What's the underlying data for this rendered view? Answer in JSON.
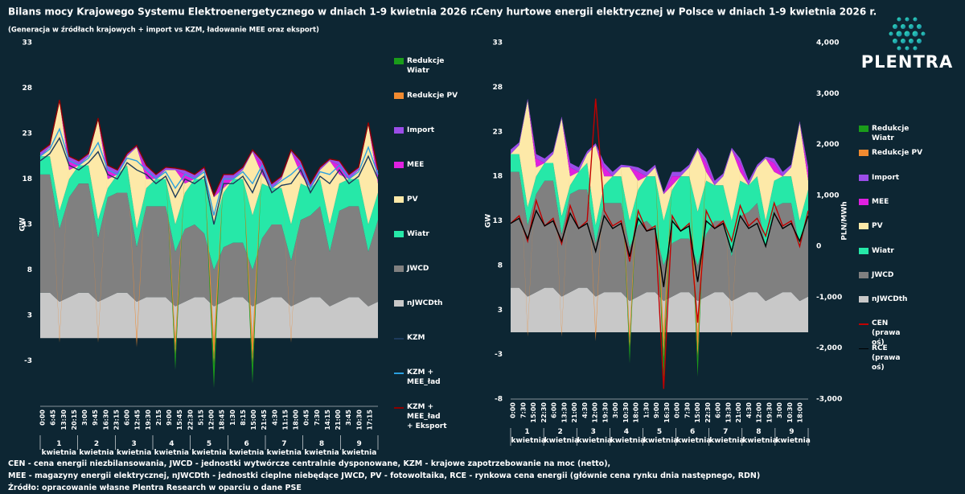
{
  "chart_data": [
    {
      "type": "stacked-area",
      "title": "Bilans mocy Krajowego Systemu Elektroenergetycznego w dniach 1-9 kwietnia 2026 r.",
      "subtitle": "(Generacja w źródłach krajowych + import vs KZM, ładowanie MEE oraz eksport)",
      "ylabel": "GW",
      "ylim": [
        -7.5,
        32.5
      ],
      "yticks": [
        {
          "value": 32.5,
          "label": "33"
        },
        {
          "value": 27.5,
          "label": "28"
        },
        {
          "value": 22.5,
          "label": "23"
        },
        {
          "value": 17.5,
          "label": "18"
        },
        {
          "value": 12.5,
          "label": "13"
        },
        {
          "value": 7.5,
          "label": "8"
        },
        {
          "value": 2.5,
          "label": "3"
        },
        {
          "value": -2.5,
          "label": "-3"
        }
      ],
      "x_tick_labels": [
        "0:00",
        "6:45",
        "13:30",
        "20:15",
        "3:00",
        "9:45",
        "16:30",
        "23:15",
        "6:00",
        "12:45",
        "19:30",
        "2:15",
        "9:00",
        "15:45",
        "22:30",
        "5:15",
        "12:00",
        "18:45",
        "1:30",
        "8:15",
        "15:00",
        "21:45",
        "4:30",
        "11:15",
        "18:00",
        "0:45",
        "7:30",
        "14:15",
        "21:00",
        "3:45",
        "10:30",
        "17:15"
      ],
      "day_labels": [
        "1 kwietnia",
        "2 kwietnia",
        "3 kwietnia",
        "4 kwietnia",
        "5 kwietnia",
        "6 kwietnia",
        "7 kwietnia",
        "8 kwietnia",
        "9 kwietnia"
      ],
      "series": [
        {
          "name": "Redukcje Wiatr",
          "kind": "area",
          "color": "#1a9c1a",
          "values": [
            0,
            0,
            0,
            0,
            0,
            0,
            0,
            0,
            0,
            0,
            0,
            0,
            0,
            0,
            -1.5,
            0,
            0,
            0,
            -2.5,
            0,
            0,
            0,
            -2,
            0,
            0,
            0,
            0,
            0,
            0,
            0,
            0,
            0,
            0,
            0,
            0,
            0
          ]
        },
        {
          "name": "Redukcje PV",
          "kind": "area",
          "color": "#f08a30",
          "values": [
            0,
            0,
            -0.5,
            0,
            0,
            0,
            -0.5,
            0,
            0,
            0,
            -1,
            0,
            0,
            0,
            -2,
            0,
            0,
            0,
            -3,
            0,
            0,
            0,
            -3,
            0,
            0,
            0,
            -0.5,
            0,
            0,
            0,
            0,
            0,
            0,
            0,
            0,
            0
          ]
        },
        {
          "name": "Import",
          "kind": "area",
          "color": "#9b4de8",
          "values": [
            0.5,
            0.3,
            0.2,
            0.5,
            0.5,
            0.3,
            0.2,
            0.5,
            0.5,
            0.3,
            0.2,
            0.5,
            0.5,
            0.3,
            0.2,
            0.5,
            0.5,
            0.3,
            0.2,
            0.5,
            0.5,
            0.3,
            0.2,
            0.5,
            0.5,
            0.3,
            0.2,
            0.5,
            0.5,
            0.3,
            0.2,
            0.5,
            0.5,
            0.3,
            0.2,
            0.5
          ]
        },
        {
          "name": "MEE",
          "kind": "area",
          "color": "#e020e0",
          "values": [
            0,
            0,
            0,
            1,
            0,
            0,
            0,
            1,
            0,
            0,
            0,
            1,
            0,
            0,
            0,
            1,
            0,
            0,
            0,
            1,
            0,
            0,
            0,
            1,
            0,
            0,
            0,
            1,
            0,
            0,
            0,
            1,
            0,
            0,
            0,
            1
          ]
        },
        {
          "name": "PV",
          "kind": "area",
          "color": "#fde9a8",
          "values": [
            0,
            1,
            12,
            1,
            0,
            1,
            11,
            1,
            0,
            1,
            9,
            1,
            0,
            1,
            6,
            1,
            0,
            1,
            3,
            0.5,
            0,
            1,
            7,
            1,
            0,
            1,
            8,
            1,
            0,
            1,
            7,
            1,
            0,
            1,
            11,
            1
          ]
        },
        {
          "name": "Wiatr",
          "kind": "area",
          "color": "#26e8a8",
          "values": [
            2,
            2,
            2,
            2,
            2,
            2,
            2,
            1,
            2,
            3,
            2,
            2,
            3,
            3,
            3,
            4,
            5,
            6,
            5,
            6,
            7,
            7,
            6,
            6,
            4,
            4,
            4,
            4,
            3,
            3,
            3,
            3,
            3,
            3,
            3,
            3
          ]
        },
        {
          "name": "JWCD",
          "kind": "area",
          "color": "#808080",
          "values": [
            13,
            13,
            8,
            11,
            12,
            12,
            7,
            11,
            11,
            11,
            6,
            10,
            10,
            10,
            6,
            8,
            8,
            7,
            4,
            6,
            6,
            6,
            4,
            7,
            8,
            8,
            5,
            9,
            9,
            10,
            6,
            10,
            10,
            10,
            6,
            9
          ]
        },
        {
          "name": "nJWCDth",
          "kind": "area",
          "color": "#c8c8c8",
          "values": [
            5,
            5,
            4,
            4.5,
            5,
            5,
            4,
            4.5,
            5,
            5,
            4,
            4.5,
            4.5,
            4.5,
            3.5,
            4,
            4.5,
            4.5,
            3.5,
            4,
            4.5,
            4.5,
            3.5,
            4,
            4.5,
            4.5,
            3.5,
            4,
            4.5,
            4.5,
            3.5,
            4,
            4.5,
            4.5,
            3.5,
            4
          ]
        },
        {
          "name": "KZM",
          "kind": "line",
          "color": "#1d3b5c",
          "values": [
            19.5,
            20.3,
            22,
            19,
            18.5,
            19.3,
            20.5,
            18,
            17.5,
            19.3,
            18.5,
            18,
            17,
            17.8,
            15.5,
            17.5,
            17,
            17.8,
            12.5,
            17,
            17,
            17.8,
            16,
            18.5,
            16,
            16.8,
            17,
            18.5,
            16,
            17.8,
            17,
            18.5,
            17,
            17.8,
            20,
            17.5
          ]
        },
        {
          "name": "KZM + MEE_ład",
          "kind": "line",
          "color": "#2aa0e0",
          "values": [
            20,
            20.8,
            23,
            19.5,
            19,
            19.8,
            21.5,
            18.5,
            18,
            19.8,
            19.5,
            18.5,
            17.5,
            18.3,
            16.5,
            18,
            17.5,
            18.3,
            13.5,
            17.5,
            17.5,
            18.3,
            17,
            19,
            16.5,
            17.3,
            18,
            19,
            16.5,
            18.3,
            18,
            19,
            17.5,
            18.3,
            21,
            18
          ]
        },
        {
          "name": "KZM + MEE_ład + Eksport",
          "kind": "line",
          "color": "#8b0000",
          "values": [
            20.5,
            21.3,
            26.2,
            20,
            19.5,
            20.3,
            24.2,
            19,
            18.5,
            20.3,
            21.2,
            19,
            18,
            18.8,
            18.7,
            18.5,
            18,
            18.8,
            15.7,
            18,
            18,
            18.8,
            20.7,
            19.5,
            17,
            17.8,
            20.7,
            19.5,
            17,
            18.8,
            19.7,
            19.5,
            18,
            18.8,
            23.7,
            18.5
          ]
        }
      ]
    },
    {
      "type": "stacked-area",
      "title": "Ceny hurtowe energii elektrycznej w Polsce w dniach 1-9 kwietnia 2026 r.",
      "ylabel": "GW",
      "y2label": "PLN/MWh",
      "ylim": [
        -7.5,
        32.5
      ],
      "yticks": [
        {
          "value": 32.5,
          "label": "33"
        },
        {
          "value": 27.5,
          "label": "28"
        },
        {
          "value": 22.5,
          "label": "23"
        },
        {
          "value": 17.5,
          "label": "18"
        },
        {
          "value": 12.5,
          "label": "13"
        },
        {
          "value": 7.5,
          "label": "8"
        },
        {
          "value": 2.5,
          "label": "3"
        },
        {
          "value": -2.5,
          "label": "-3"
        },
        {
          "value": -7.5,
          "label": "-8"
        }
      ],
      "y2lim": [
        -3000,
        4000
      ],
      "y2ticks": [
        {
          "value": 4000,
          "label": "4,000"
        },
        {
          "value": 3000,
          "label": "3,000"
        },
        {
          "value": 2000,
          "label": "2,000"
        },
        {
          "value": 1000,
          "label": "1,000"
        },
        0,
        {
          "value": -1000,
          "label": "-1,000"
        },
        {
          "value": -2000,
          "label": "-2,000"
        },
        {
          "value": -3000,
          "label": "-3,000"
        }
      ],
      "x_tick_labels": [
        "0:00",
        "7:30",
        "15:00",
        "22:30",
        "6:00",
        "13:30",
        "21:00",
        "4:30",
        "12:00",
        "19:30",
        "3:00",
        "10:30",
        "18:00",
        "1:30",
        "9:00",
        "16:30",
        "0:00",
        "7:30",
        "15:00",
        "22:30",
        "6:00",
        "13:30",
        "21:00",
        "4:30",
        "12:00",
        "19:30",
        "3:00",
        "10:30",
        "18:00"
      ],
      "day_labels": [
        "1 kwietnia",
        "2 kwietnia",
        "3 kwietnia",
        "4 kwietnia",
        "5 kwietnia",
        "6 kwietnia",
        "7 kwietnia",
        "8 kwietnia",
        "9 kwietnia"
      ],
      "series": [
        {
          "name": "Redukcje Wiatr",
          "kind": "area",
          "color": "#1a9c1a",
          "values": [
            0,
            0,
            0,
            0,
            0,
            0,
            0,
            0,
            0,
            0,
            0,
            0,
            0,
            0,
            -1.5,
            0,
            0,
            0,
            -2.5,
            0,
            0,
            0,
            -2,
            0,
            0,
            0,
            0,
            0,
            0,
            0,
            0,
            0,
            0,
            0,
            0,
            0
          ]
        },
        {
          "name": "Redukcje PV",
          "kind": "area",
          "color": "#f08a30",
          "values": [
            0,
            0,
            -0.5,
            0,
            0,
            0,
            -0.5,
            0,
            0,
            0,
            -1,
            0,
            0,
            0,
            -2,
            0,
            0,
            0,
            -3,
            0,
            0,
            0,
            -3,
            0,
            0,
            0,
            -0.5,
            0,
            0,
            0,
            0,
            0,
            0,
            0,
            0,
            0
          ]
        },
        {
          "name": "Import",
          "kind": "area",
          "color": "#9b4de8",
          "values": [
            0.5,
            0.3,
            0.2,
            0.5,
            0.5,
            0.3,
            0.2,
            0.5,
            0.5,
            0.3,
            0.2,
            0.5,
            0.5,
            0.3,
            0.2,
            0.5,
            0.5,
            0.3,
            0.2,
            0.5,
            0.5,
            0.3,
            0.2,
            0.5,
            0.5,
            0.3,
            0.2,
            0.5,
            0.5,
            0.3,
            0.2,
            0.5,
            0.5,
            0.3,
            0.2,
            0.5
          ]
        },
        {
          "name": "MEE",
          "kind": "area",
          "color": "#e020e0",
          "values": [
            0,
            0,
            0,
            1,
            0,
            0,
            0,
            1,
            0,
            0,
            0,
            1,
            0,
            0,
            0,
            1,
            0,
            0,
            0,
            1,
            0,
            0,
            0,
            1,
            0,
            0,
            0,
            1,
            0,
            0,
            0,
            1,
            0,
            0,
            0,
            1
          ]
        },
        {
          "name": "PV",
          "kind": "area",
          "color": "#fde9a8",
          "values": [
            0,
            1,
            12,
            1,
            0,
            1,
            11,
            1,
            0,
            1,
            9,
            1,
            0,
            1,
            6,
            1,
            0,
            1,
            3,
            0.5,
            0,
            1,
            7,
            1,
            0,
            1,
            8,
            1,
            0,
            1,
            7,
            1,
            0,
            1,
            11,
            1
          ]
        },
        {
          "name": "Wiatr",
          "kind": "area",
          "color": "#26e8a8",
          "values": [
            2,
            2,
            2,
            2,
            2,
            2,
            2,
            1,
            2,
            3,
            2,
            2,
            3,
            3,
            3,
            4,
            5,
            6,
            5,
            6,
            7,
            7,
            6,
            6,
            4,
            4,
            4,
            4,
            3,
            3,
            3,
            3,
            3,
            3,
            3,
            3
          ]
        },
        {
          "name": "JWCD",
          "kind": "area",
          "color": "#808080",
          "values": [
            13,
            13,
            8,
            11,
            12,
            12,
            7,
            11,
            11,
            11,
            6,
            10,
            10,
            10,
            6,
            8,
            8,
            7,
            4,
            6,
            6,
            6,
            4,
            7,
            8,
            8,
            5,
            9,
            9,
            10,
            6,
            10,
            10,
            10,
            6,
            9
          ]
        },
        {
          "name": "nJWCDth",
          "kind": "area",
          "color": "#c8c8c8",
          "values": [
            5,
            5,
            4,
            4.5,
            5,
            5,
            4,
            4.5,
            5,
            5,
            4,
            4.5,
            4.5,
            4.5,
            3.5,
            4,
            4.5,
            4.5,
            3.5,
            4,
            4.5,
            4.5,
            3.5,
            4,
            4.5,
            4.5,
            3.5,
            4,
            4.5,
            4.5,
            3.5,
            4,
            4.5,
            4.5,
            3.5,
            4
          ]
        },
        {
          "name": "CEN (prawa oś)",
          "kind": "line",
          "axis": "y2",
          "color": "#c00000",
          "values": [
            450,
            600,
            100,
            900,
            400,
            550,
            50,
            800,
            350,
            500,
            2900,
            700,
            400,
            500,
            -300,
            700,
            300,
            400,
            -2800,
            600,
            300,
            450,
            -1500,
            700,
            350,
            500,
            100,
            800,
            400,
            550,
            200,
            850,
            400,
            500,
            0,
            700
          ]
        },
        {
          "name": "RCE (prawa oś)",
          "kind": "line",
          "axis": "y2",
          "color": "#000000",
          "values": [
            450,
            550,
            150,
            700,
            400,
            500,
            100,
            650,
            350,
            450,
            -100,
            600,
            350,
            450,
            -200,
            550,
            300,
            350,
            -800,
            500,
            300,
            400,
            -700,
            500,
            350,
            450,
            -100,
            600,
            350,
            450,
            0,
            650,
            350,
            450,
            100,
            600
          ]
        }
      ]
    }
  ],
  "logo": "PLENTRA",
  "notes": [
    "CEN - cena energii niezbilansowania, JWCD - jednostki wytwórcze centralnie dysponowane, KZM - krajowe zapotrzebowanie na moc (netto),",
    "MEE - magazyny energii elektrycznej, nJWCDth - jednostki cieplne niebędące JWCD, PV - fotowoltaika, RCE - rynkowa cena energii (głównie cena rynku dnia następnego, RDN)",
    "Źródło: opracowanie własne Plentra Research w oparciu o dane PSE"
  ]
}
